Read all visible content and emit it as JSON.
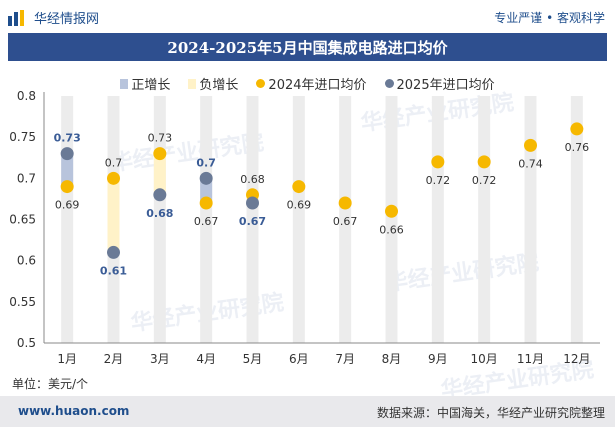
{
  "header": {
    "brand": "华经情报网",
    "slogan": "专业严谨 • 客观科学"
  },
  "title": "2024-2025年5月中国集成电路进口均价",
  "legend": {
    "pos": "正增长",
    "neg": "负增长",
    "s2024": "2024年进口均价",
    "s2025": "2025年进口均价"
  },
  "unit_label": "单位：美元/个",
  "footer": {
    "url": "www.huaon.com",
    "source": "数据来源：中国海关，华经产业研究院整理"
  },
  "watermark": "华经产业研究院",
  "colors": {
    "s2024": "#f6b800",
    "s2025": "#6a7a96",
    "pos": "#b8c4dc",
    "neg": "#fff2c8",
    "track": "#ececec",
    "label2025": "#3a5c96"
  },
  "chart_data": {
    "type": "scatter",
    "categories": [
      "1月",
      "2月",
      "3月",
      "4月",
      "5月",
      "6月",
      "7月",
      "8月",
      "9月",
      "10月",
      "11月",
      "12月"
    ],
    "series": [
      {
        "name": "2024年进口均价",
        "values": [
          0.69,
          0.7,
          0.73,
          0.67,
          0.68,
          0.69,
          0.67,
          0.66,
          0.72,
          0.72,
          0.74,
          0.76
        ]
      },
      {
        "name": "2025年进口均价",
        "values": [
          0.73,
          0.61,
          0.68,
          0.7,
          0.67,
          null,
          null,
          null,
          null,
          null,
          null,
          null
        ]
      }
    ],
    "ylim": [
      0.5,
      0.8
    ],
    "yticks": [
      "0.5",
      "0.55",
      "0.6",
      "0.65",
      "0.7",
      "0.75",
      "0.8"
    ],
    "legend": "top-center",
    "grid": false
  }
}
